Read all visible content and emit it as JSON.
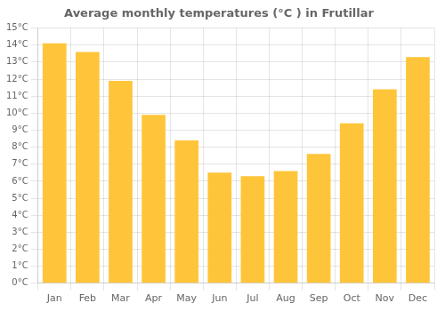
{
  "chart_data": {
    "type": "bar",
    "title": "Average monthly temperatures (°C ) in Frutillar",
    "categories": [
      "Jan",
      "Feb",
      "Mar",
      "Apr",
      "May",
      "Jun",
      "Jul",
      "Aug",
      "Sep",
      "Oct",
      "Nov",
      "Dec"
    ],
    "values": [
      14.1,
      13.6,
      11.9,
      9.9,
      8.4,
      6.5,
      6.3,
      6.6,
      7.6,
      9.4,
      11.4,
      13.3
    ],
    "color": "#FFC53A",
    "ylim": [
      0,
      15
    ],
    "yticks": [
      {
        "value": 0,
        "label": "0°C"
      },
      {
        "value": 1,
        "label": "1°C"
      },
      {
        "value": 2,
        "label": "2°C"
      },
      {
        "value": 3,
        "label": "3°C"
      },
      {
        "value": 4,
        "label": "4°C"
      },
      {
        "value": 5,
        "label": "5°C"
      },
      {
        "value": 6,
        "label": "6°C"
      },
      {
        "value": 7,
        "label": "7°C"
      },
      {
        "value": 8,
        "label": "8°C"
      },
      {
        "value": 9,
        "label": "9°C"
      },
      {
        "value": 10,
        "label": "10°C"
      },
      {
        "value": 11,
        "label": "11°C"
      },
      {
        "value": 12,
        "label": "12°C"
      },
      {
        "value": 13,
        "label": "13°C"
      },
      {
        "value": 14,
        "label": "14°C"
      },
      {
        "value": 15,
        "label": "15°C"
      }
    ],
    "grid": true
  }
}
